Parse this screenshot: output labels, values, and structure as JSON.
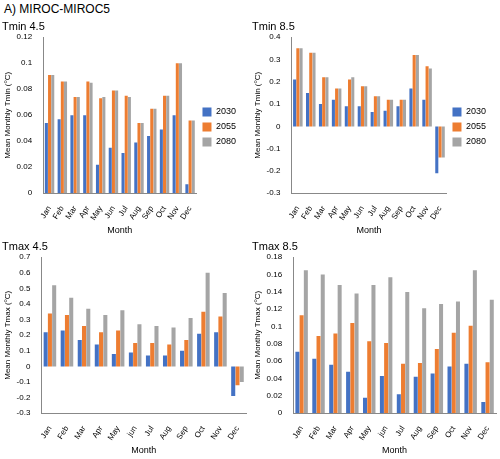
{
  "page_title": "A) MIROC-MIROC5",
  "chart_data": [
    {
      "type": "bar",
      "title": "Tmin 4.5",
      "x_label": "Month",
      "y_label": "Mean Monthly Tmin (⁰C)",
      "categories": [
        "Jan",
        "Feb",
        "Mar",
        "Apr",
        "May",
        "Jun",
        "Jul",
        "Aug",
        "Sep",
        "Oct",
        "Nov",
        "Dec"
      ],
      "series": [
        {
          "name": "2030",
          "color": "#4472c4",
          "values": [
            0.054,
            0.057,
            0.06,
            0.06,
            0.022,
            0.035,
            0.031,
            0.039,
            0.044,
            0.049,
            0.06,
            0.007
          ]
        },
        {
          "name": "2055",
          "color": "#ed7d31",
          "values": [
            0.091,
            0.086,
            0.074,
            0.086,
            0.073,
            0.079,
            0.075,
            0.054,
            0.065,
            0.075,
            0.1,
            0.056
          ]
        },
        {
          "name": "2080",
          "color": "#a5a5a5",
          "values": [
            0.091,
            0.086,
            0.074,
            0.085,
            0.074,
            0.079,
            0.074,
            0.054,
            0.065,
            0.075,
            0.1,
            0.056
          ]
        }
      ],
      "ylim": [
        0,
        0.12
      ],
      "yticks": [
        0,
        0.02,
        0.04,
        0.06,
        0.08,
        0.1,
        0.12
      ],
      "grid": false,
      "legend": "right"
    },
    {
      "type": "bar",
      "title": "Tmin 8.5",
      "x_label": "Month",
      "y_label": "Mean Monthly Tmin (⁰C)",
      "categories": [
        "Jan",
        "Feb",
        "Mar",
        "Apr",
        "May",
        "Jun",
        "Jul",
        "Aug",
        "Sep",
        "Oct",
        "Nov",
        "Dec"
      ],
      "series": [
        {
          "name": "2030",
          "color": "#4472c4",
          "values": [
            0.21,
            0.15,
            0.1,
            0.12,
            0.09,
            0.09,
            0.065,
            0.07,
            0.09,
            0.17,
            0.12,
            -0.21
          ]
        },
        {
          "name": "2055",
          "color": "#ed7d31",
          "values": [
            0.35,
            0.33,
            0.22,
            0.17,
            0.21,
            0.18,
            0.135,
            0.12,
            0.12,
            0.32,
            0.27,
            -0.14
          ]
        },
        {
          "name": "2080",
          "color": "#a5a5a5",
          "values": [
            0.35,
            0.33,
            0.22,
            0.17,
            0.22,
            0.18,
            0.135,
            0.12,
            0.12,
            0.32,
            0.26,
            -0.14
          ]
        }
      ],
      "ylim": [
        -0.3,
        0.4
      ],
      "yticks": [
        -0.3,
        -0.2,
        -0.1,
        0,
        0.1,
        0.2,
        0.3,
        0.4
      ],
      "grid": false,
      "legend": "right"
    },
    {
      "type": "bar",
      "title": "Tmax 4.5",
      "x_label": "Month",
      "y_label": "Mean Monthly Tmax (⁰C)",
      "categories": [
        "Jan",
        "Feb",
        "Mar",
        "Apr",
        "May",
        "jun",
        "Jul",
        "Aug",
        "Sep",
        "Oct",
        "Nov",
        "Dec"
      ],
      "series": [
        {
          "name": "2030",
          "color": "#4472c4",
          "values": [
            0.22,
            0.23,
            0.17,
            0.14,
            0.08,
            0.09,
            0.07,
            0.07,
            0.1,
            0.21,
            0.22,
            -0.19
          ]
        },
        {
          "name": "2055",
          "color": "#ed7d31",
          "values": [
            0.34,
            0.33,
            0.26,
            0.22,
            0.23,
            0.15,
            0.15,
            0.14,
            0.17,
            0.35,
            0.32,
            -0.12
          ]
        },
        {
          "name": "2080",
          "color": "#a5a5a5",
          "values": [
            0.52,
            0.44,
            0.37,
            0.33,
            0.36,
            0.27,
            0.26,
            0.25,
            0.31,
            0.6,
            0.47,
            -0.1
          ]
        }
      ],
      "ylim": [
        -0.3,
        0.7
      ],
      "yticks": [
        -0.3,
        -0.2,
        -0.1,
        0,
        0.1,
        0.2,
        0.3,
        0.4,
        0.5,
        0.6,
        0.7
      ],
      "grid": false
    },
    {
      "type": "bar",
      "title": "Tmax 8.5",
      "x_label": "Month",
      "y_label": "Mean Monthly Tmax (⁰C)",
      "categories": [
        "Jan",
        "Feb",
        "Mar",
        "Apr",
        "May",
        "jun",
        "Jul",
        "Aug",
        "Sep",
        "Oct",
        "Nov",
        "Dec"
      ],
      "series": [
        {
          "name": "2030",
          "color": "#4472c4",
          "values": [
            0.071,
            0.063,
            0.056,
            0.048,
            0.018,
            0.043,
            0.022,
            0.042,
            0.046,
            0.054,
            0.057,
            0.013
          ]
        },
        {
          "name": "2055",
          "color": "#ed7d31",
          "values": [
            0.113,
            0.089,
            0.092,
            0.104,
            0.083,
            0.081,
            0.057,
            0.058,
            0.074,
            0.093,
            0.101,
            0.059
          ]
        },
        {
          "name": "2080",
          "color": "#a5a5a5",
          "values": [
            0.165,
            0.16,
            0.148,
            0.138,
            0.148,
            0.157,
            0.14,
            0.121,
            0.126,
            0.129,
            0.165,
            0.131
          ]
        }
      ],
      "ylim": [
        0,
        0.18
      ],
      "yticks": [
        0,
        0.02,
        0.04,
        0.06,
        0.08,
        0.1,
        0.12,
        0.14,
        0.16,
        0.18
      ],
      "grid": false
    }
  ]
}
